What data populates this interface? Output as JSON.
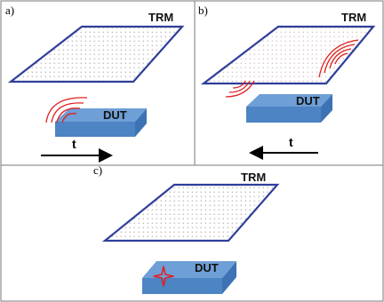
{
  "panels": [
    {
      "label": "a)",
      "trm_label": "TRM",
      "dut_label": "DUT",
      "time_label": "t",
      "arrow_direction": "right"
    },
    {
      "label": "b)",
      "trm_label": "TRM",
      "dut_label": "DUT",
      "time_label": "t",
      "arrow_direction": "left"
    },
    {
      "label": "c)",
      "trm_label": "TRM",
      "dut_label": "DUT"
    }
  ],
  "colors": {
    "plate_outline": "#2f3f9a",
    "plate_dots": "#7a7a7a",
    "dut_top": "#6e9fd6",
    "dut_front": "#4c84c4",
    "dut_side": "#3d73b4",
    "waves": "#e02020",
    "focus_star": "#e02020",
    "border": "#7a7a7a"
  }
}
